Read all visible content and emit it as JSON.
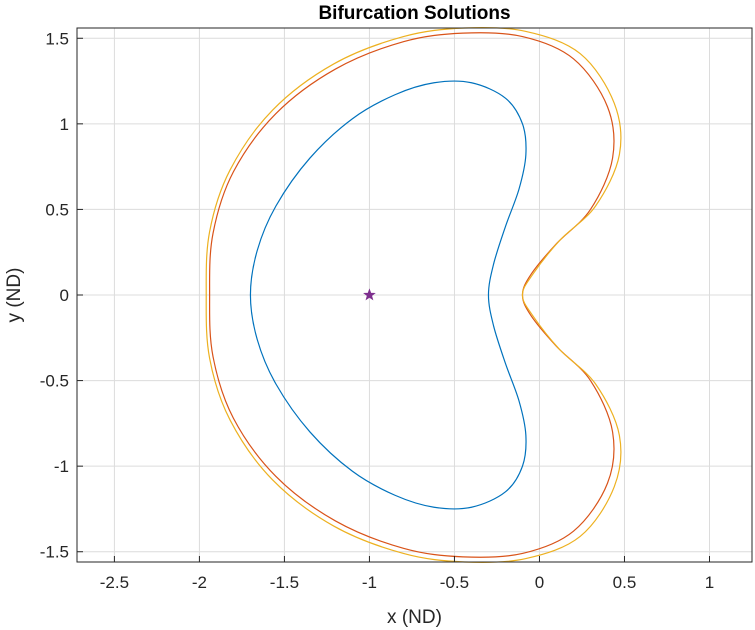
{
  "chart_data": {
    "type": "line",
    "title": "Bifurcation Solutions",
    "xlabel": "x (ND)",
    "ylabel": "y (ND)",
    "xlim": [
      -2.72,
      1.25
    ],
    "ylim": [
      -1.56,
      1.56
    ],
    "xticks": [
      -2.5,
      -2,
      -1.5,
      -1,
      -0.5,
      0,
      0.5,
      1
    ],
    "xtick_labels": [
      "-2.5",
      "-2",
      "-1.5",
      "-1",
      "-0.5",
      "0",
      "0.5",
      "1"
    ],
    "yticks": [
      -1.5,
      -1,
      -0.5,
      0,
      0.5,
      1,
      1.5
    ],
    "ytick_labels": [
      "-1.5",
      "-1",
      "-0.5",
      "0",
      "0.5",
      "1",
      "1.5"
    ],
    "grid": true,
    "series": [
      {
        "color": "#0072BD",
        "x": [
          -0.3,
          -0.27,
          -0.2,
          -0.12,
          -0.08,
          -0.1,
          -0.2,
          -0.4,
          -0.62,
          -0.85,
          -1.1,
          -1.35,
          -1.55,
          -1.66,
          -1.7,
          -1.66,
          -1.55,
          -1.35,
          -1.1,
          -0.85,
          -0.62,
          -0.4,
          -0.2,
          -0.1,
          -0.08,
          -0.12,
          -0.2,
          -0.27,
          -0.3
        ],
        "y": [
          0.0,
          0.18,
          0.4,
          0.62,
          0.82,
          1.0,
          1.15,
          1.24,
          1.24,
          1.17,
          1.03,
          0.8,
          0.52,
          0.26,
          0.0,
          -0.26,
          -0.52,
          -0.8,
          -1.03,
          -1.17,
          -1.24,
          -1.24,
          -1.15,
          -1.0,
          -0.82,
          -0.62,
          -0.4,
          -0.18,
          0.0
        ]
      },
      {
        "color": "#D95319",
        "x": [
          -0.1,
          -0.05,
          0.1,
          0.3,
          0.43,
          0.4,
          0.2,
          -0.1,
          -0.45,
          -0.8,
          -1.2,
          -1.55,
          -1.8,
          -1.92,
          -1.94,
          -1.92,
          -1.8,
          -1.55,
          -1.2,
          -0.8,
          -0.45,
          -0.1,
          0.2,
          0.4,
          0.43,
          0.3,
          0.1,
          -0.05,
          -0.1
        ],
        "y": [
          0.0,
          0.12,
          0.3,
          0.5,
          0.8,
          1.1,
          1.38,
          1.51,
          1.53,
          1.48,
          1.32,
          1.06,
          0.72,
          0.36,
          0.0,
          -0.36,
          -0.72,
          -1.06,
          -1.32,
          -1.48,
          -1.53,
          -1.51,
          -1.38,
          -1.1,
          -0.8,
          -0.5,
          -0.3,
          -0.12,
          0.0
        ]
      },
      {
        "color": "#EDB120",
        "x": [
          -0.1,
          -0.04,
          0.12,
          0.33,
          0.47,
          0.44,
          0.24,
          -0.08,
          -0.44,
          -0.8,
          -1.21,
          -1.57,
          -1.82,
          -1.94,
          -1.96,
          -1.94,
          -1.82,
          -1.57,
          -1.21,
          -0.8,
          -0.44,
          -0.08,
          0.24,
          0.44,
          0.47,
          0.33,
          0.12,
          -0.04,
          -0.1
        ],
        "y": [
          0.0,
          0.12,
          0.32,
          0.52,
          0.82,
          1.12,
          1.41,
          1.54,
          1.56,
          1.51,
          1.35,
          1.08,
          0.73,
          0.37,
          0.0,
          -0.37,
          -0.73,
          -1.08,
          -1.35,
          -1.51,
          -1.56,
          -1.54,
          -1.41,
          -1.12,
          -0.82,
          -0.52,
          -0.32,
          -0.12,
          0.0
        ]
      }
    ],
    "marker": {
      "x": -1,
      "y": 0,
      "symbol": "star",
      "color": "#7E2F8E"
    }
  }
}
